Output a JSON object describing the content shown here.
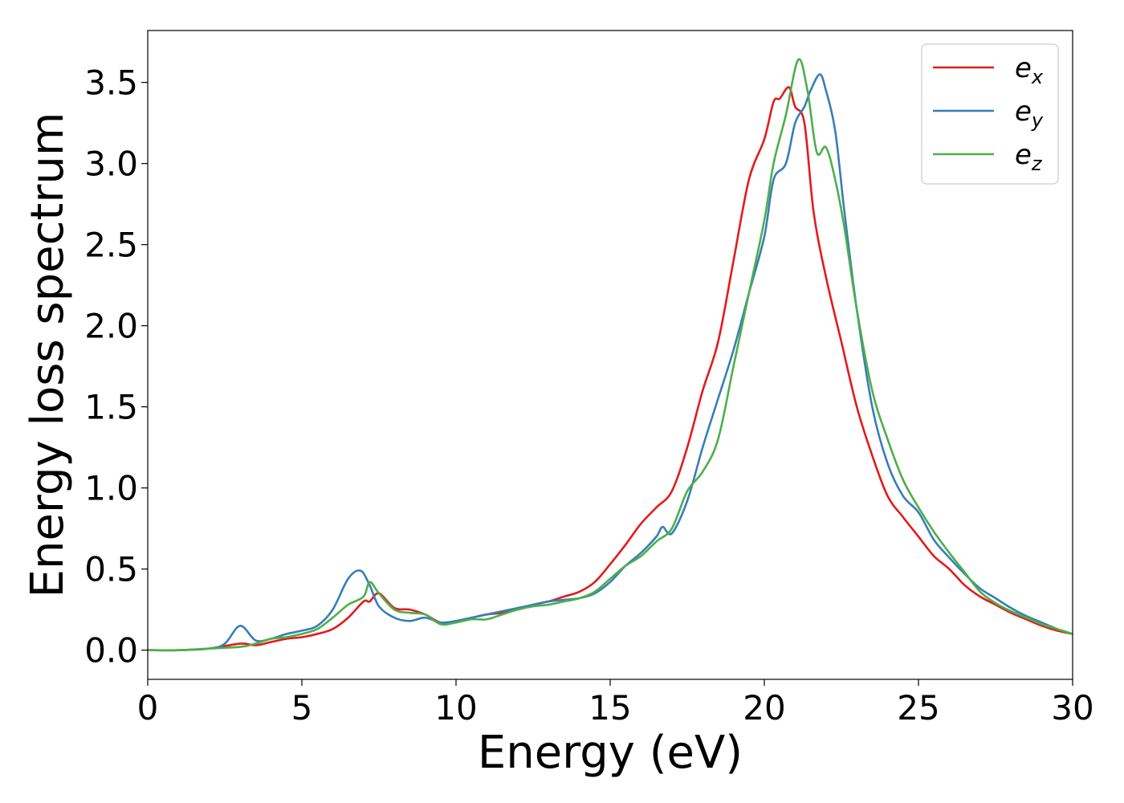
{
  "chart_data": {
    "type": "line",
    "title": "",
    "xlabel": "Energy (eV)",
    "ylabel": "Energy loss spectrum",
    "xlim": [
      0,
      30
    ],
    "ylim": [
      -0.18,
      3.82
    ],
    "xticks": [
      0,
      5,
      10,
      15,
      20,
      25,
      30
    ],
    "xtick_labels": [
      "0",
      "5",
      "10",
      "15",
      "20",
      "25",
      "30"
    ],
    "yticks": [
      0.0,
      0.5,
      1.0,
      1.5,
      2.0,
      2.5,
      3.0,
      3.5
    ],
    "ytick_labels": [
      "0.0",
      "0.5",
      "1.0",
      "1.5",
      "2.0",
      "2.5",
      "3.0",
      "3.5"
    ],
    "grid": false,
    "legend_position": "top-right",
    "series": [
      {
        "name": "e_x",
        "label_base": "e",
        "label_sub": "x",
        "color": "#e41a1c",
        "points": [
          [
            0,
            0.0
          ],
          [
            1,
            0.0
          ],
          [
            2,
            0.01
          ],
          [
            3,
            0.04
          ],
          [
            3.5,
            0.03
          ],
          [
            4,
            0.05
          ],
          [
            4.5,
            0.07
          ],
          [
            5,
            0.08
          ],
          [
            5.5,
            0.1
          ],
          [
            6,
            0.13
          ],
          [
            6.5,
            0.2
          ],
          [
            7,
            0.3
          ],
          [
            7.2,
            0.3
          ],
          [
            7.5,
            0.35
          ],
          [
            8,
            0.26
          ],
          [
            8.5,
            0.25
          ],
          [
            9,
            0.22
          ],
          [
            9.5,
            0.17
          ],
          [
            10,
            0.18
          ],
          [
            10.5,
            0.2
          ],
          [
            11,
            0.22
          ],
          [
            11.5,
            0.23
          ],
          [
            12,
            0.25
          ],
          [
            12.5,
            0.28
          ],
          [
            13,
            0.3
          ],
          [
            13.5,
            0.33
          ],
          [
            14,
            0.36
          ],
          [
            14.5,
            0.42
          ],
          [
            15,
            0.53
          ],
          [
            15.5,
            0.65
          ],
          [
            16,
            0.78
          ],
          [
            16.5,
            0.88
          ],
          [
            17,
            0.98
          ],
          [
            17.5,
            1.25
          ],
          [
            18,
            1.6
          ],
          [
            18.5,
            1.9
          ],
          [
            19,
            2.4
          ],
          [
            19.5,
            2.9
          ],
          [
            20,
            3.15
          ],
          [
            20.3,
            3.38
          ],
          [
            20.5,
            3.4
          ],
          [
            20.8,
            3.47
          ],
          [
            21,
            3.35
          ],
          [
            21.3,
            3.25
          ],
          [
            21.6,
            2.7
          ],
          [
            22,
            2.3
          ],
          [
            22.5,
            1.9
          ],
          [
            23,
            1.5
          ],
          [
            23.5,
            1.2
          ],
          [
            24,
            0.95
          ],
          [
            24.5,
            0.82
          ],
          [
            25,
            0.7
          ],
          [
            25.5,
            0.58
          ],
          [
            26,
            0.5
          ],
          [
            26.5,
            0.4
          ],
          [
            27,
            0.33
          ],
          [
            27.5,
            0.28
          ],
          [
            28,
            0.23
          ],
          [
            28.5,
            0.19
          ],
          [
            29,
            0.15
          ],
          [
            29.5,
            0.12
          ],
          [
            30,
            0.1
          ]
        ]
      },
      {
        "name": "e_y",
        "label_base": "e",
        "label_sub": "y",
        "color": "#377eb8",
        "points": [
          [
            0,
            0.0
          ],
          [
            1,
            0.0
          ],
          [
            2,
            0.01
          ],
          [
            2.5,
            0.04
          ],
          [
            3,
            0.15
          ],
          [
            3.5,
            0.06
          ],
          [
            4,
            0.07
          ],
          [
            4.5,
            0.1
          ],
          [
            5,
            0.12
          ],
          [
            5.5,
            0.15
          ],
          [
            6,
            0.25
          ],
          [
            6.5,
            0.44
          ],
          [
            6.9,
            0.49
          ],
          [
            7.2,
            0.4
          ],
          [
            7.5,
            0.27
          ],
          [
            8,
            0.2
          ],
          [
            8.5,
            0.18
          ],
          [
            9,
            0.2
          ],
          [
            9.5,
            0.17
          ],
          [
            10,
            0.18
          ],
          [
            10.5,
            0.2
          ],
          [
            11,
            0.22
          ],
          [
            11.5,
            0.24
          ],
          [
            12,
            0.26
          ],
          [
            12.5,
            0.28
          ],
          [
            13,
            0.3
          ],
          [
            13.5,
            0.31
          ],
          [
            14,
            0.32
          ],
          [
            14.5,
            0.35
          ],
          [
            15,
            0.42
          ],
          [
            15.5,
            0.52
          ],
          [
            16,
            0.6
          ],
          [
            16.5,
            0.7
          ],
          [
            16.7,
            0.76
          ],
          [
            17,
            0.72
          ],
          [
            17.5,
            0.92
          ],
          [
            18,
            1.25
          ],
          [
            18.5,
            1.55
          ],
          [
            19,
            1.85
          ],
          [
            19.5,
            2.2
          ],
          [
            20,
            2.55
          ],
          [
            20.3,
            2.9
          ],
          [
            20.7,
            3.0
          ],
          [
            21,
            3.25
          ],
          [
            21.3,
            3.35
          ],
          [
            21.5,
            3.45
          ],
          [
            21.8,
            3.55
          ],
          [
            22,
            3.45
          ],
          [
            22.3,
            3.2
          ],
          [
            22.6,
            2.7
          ],
          [
            23,
            2.1
          ],
          [
            23.5,
            1.5
          ],
          [
            24,
            1.15
          ],
          [
            24.5,
            0.95
          ],
          [
            25,
            0.85
          ],
          [
            25.5,
            0.68
          ],
          [
            26,
            0.57
          ],
          [
            26.5,
            0.47
          ],
          [
            27,
            0.38
          ],
          [
            27.5,
            0.32
          ],
          [
            28,
            0.26
          ],
          [
            28.5,
            0.21
          ],
          [
            29,
            0.17
          ],
          [
            29.5,
            0.13
          ],
          [
            30,
            0.1
          ]
        ]
      },
      {
        "name": "e_z",
        "label_base": "e",
        "label_sub": "z",
        "color": "#4daf4a",
        "points": [
          [
            0,
            0.0
          ],
          [
            1,
            0.0
          ],
          [
            2,
            0.01
          ],
          [
            3,
            0.02
          ],
          [
            3.5,
            0.04
          ],
          [
            4,
            0.07
          ],
          [
            4.5,
            0.08
          ],
          [
            5,
            0.1
          ],
          [
            5.5,
            0.13
          ],
          [
            6,
            0.2
          ],
          [
            6.5,
            0.28
          ],
          [
            7,
            0.33
          ],
          [
            7.2,
            0.42
          ],
          [
            7.5,
            0.35
          ],
          [
            8,
            0.25
          ],
          [
            8.5,
            0.23
          ],
          [
            9,
            0.22
          ],
          [
            9.5,
            0.16
          ],
          [
            10,
            0.17
          ],
          [
            10.5,
            0.19
          ],
          [
            11,
            0.19
          ],
          [
            11.5,
            0.22
          ],
          [
            12,
            0.25
          ],
          [
            12.5,
            0.27
          ],
          [
            13,
            0.28
          ],
          [
            13.5,
            0.3
          ],
          [
            14,
            0.32
          ],
          [
            14.5,
            0.36
          ],
          [
            15,
            0.44
          ],
          [
            15.5,
            0.52
          ],
          [
            16,
            0.58
          ],
          [
            16.5,
            0.67
          ],
          [
            17,
            0.75
          ],
          [
            17.5,
            0.98
          ],
          [
            18,
            1.1
          ],
          [
            18.5,
            1.3
          ],
          [
            19,
            1.75
          ],
          [
            19.5,
            2.2
          ],
          [
            20,
            2.65
          ],
          [
            20.3,
            3.0
          ],
          [
            20.7,
            3.3
          ],
          [
            21.1,
            3.64
          ],
          [
            21.4,
            3.45
          ],
          [
            21.7,
            3.07
          ],
          [
            22,
            3.1
          ],
          [
            22.3,
            2.9
          ],
          [
            22.6,
            2.6
          ],
          [
            23,
            2.1
          ],
          [
            23.5,
            1.6
          ],
          [
            24,
            1.3
          ],
          [
            24.5,
            1.05
          ],
          [
            25,
            0.88
          ],
          [
            25.5,
            0.73
          ],
          [
            26,
            0.6
          ],
          [
            26.5,
            0.48
          ],
          [
            27,
            0.36
          ],
          [
            27.5,
            0.29
          ],
          [
            28,
            0.24
          ],
          [
            28.5,
            0.2
          ],
          [
            29,
            0.16
          ],
          [
            29.5,
            0.13
          ],
          [
            30,
            0.1
          ]
        ]
      }
    ]
  }
}
